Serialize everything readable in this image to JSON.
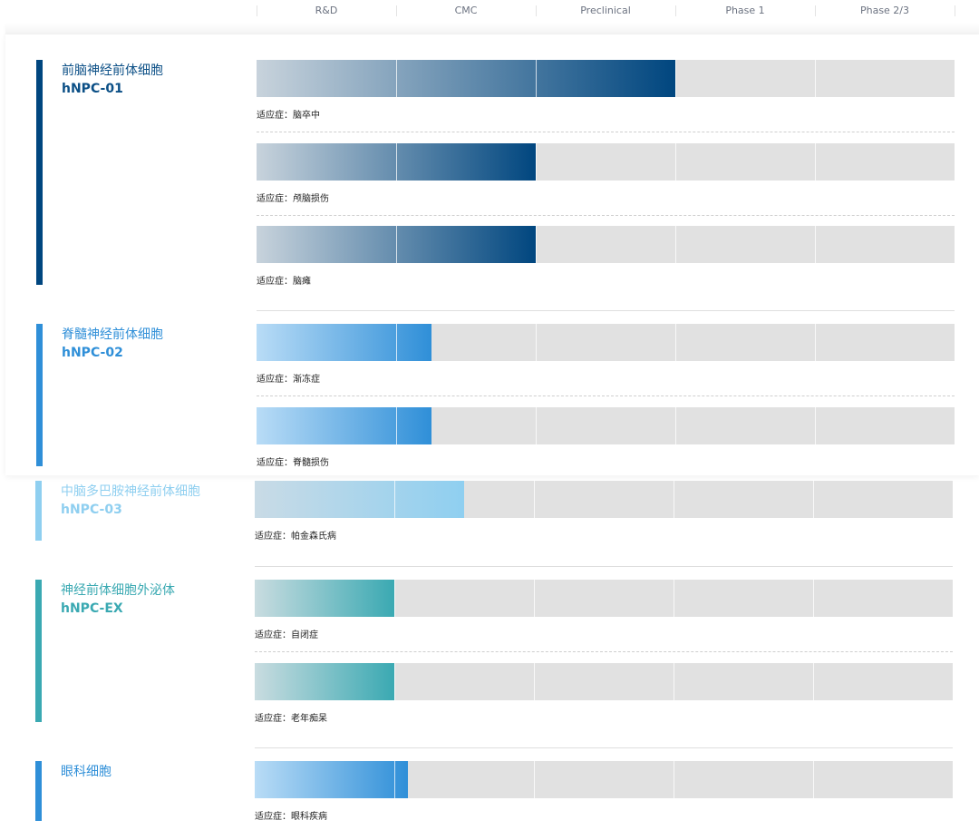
{
  "header": {
    "stages": [
      "R&D",
      "CMC",
      "Preclinical",
      "Phase 1",
      "Phase 2/3"
    ]
  },
  "indication_prefix": "适应症：",
  "chart_data": {
    "type": "bar",
    "orientation": "horizontal",
    "stages": [
      "R&D",
      "CMC",
      "Preclinical",
      "Phase 1",
      "Phase 2/3"
    ],
    "groups": [
      {
        "name": "前脑神经前体细胞",
        "code": "hNPC-01",
        "color": "#00467f",
        "items": [
          {
            "indication": "脑卒中",
            "progress_stages": 3.0
          },
          {
            "indication": "颅脑损伤",
            "progress_stages": 2.0
          },
          {
            "indication": "脑瘫",
            "progress_stages": 2.0
          }
        ]
      },
      {
        "name": "脊髓神经前体细胞",
        "code": "hNPC-02",
        "color": "#2f8fd8",
        "items": [
          {
            "indication": "渐冻症",
            "progress_stages": 1.25
          },
          {
            "indication": "脊髓损伤",
            "progress_stages": 1.25
          }
        ]
      },
      {
        "name": "中脑多巴胺神经前体细胞",
        "code": "hNPC-03",
        "color": "#8fcff0",
        "items": [
          {
            "indication": "帕金森氏病",
            "progress_stages": 1.5
          }
        ]
      },
      {
        "name": "神经前体细胞外泌体",
        "code": "hNPC-EX",
        "color": "#3aa9b2",
        "items": [
          {
            "indication": "自闭症",
            "progress_stages": 1.0
          },
          {
            "indication": "老年痴呆",
            "progress_stages": 1.0
          }
        ]
      },
      {
        "name": "眼科细胞",
        "code": "",
        "color": "#2f8fd8",
        "items": [
          {
            "indication": "眼科疾病",
            "progress_stages": 1.1
          }
        ]
      }
    ]
  },
  "colors": {
    "track": "#e1e1e1",
    "group1_start": "#c8d3dc",
    "group1_end": "#00467f",
    "group2_start": "#b9dcf6",
    "group2_end": "#2f8fd8",
    "group3_start": "#c9dbe6",
    "group3_end": "#8fcff0",
    "group4_start": "#c9dce0",
    "group4_end": "#3aa9b2",
    "group5_start": "#b9dcf6",
    "group5_end": "#2f8fd8"
  }
}
